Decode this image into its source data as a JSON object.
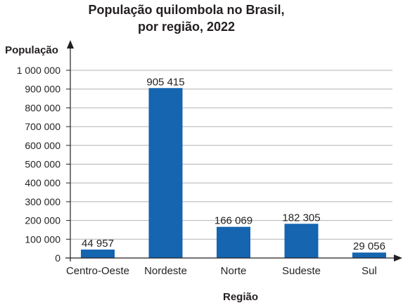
{
  "chart_data": {
    "type": "bar",
    "title_line1": "População quilombola no Brasil,",
    "title_line2": "por região, 2022",
    "ylabel": "População",
    "xlabel": "Região",
    "categories": [
      "Centro-Oeste",
      "Nordeste",
      "Norte",
      "Sudeste",
      "Sul"
    ],
    "values": [
      44957,
      905415,
      166069,
      182305,
      29056
    ],
    "value_labels": [
      "44 957",
      "905 415",
      "166 069",
      "182 305",
      "29 056"
    ],
    "ylim": [
      0,
      1000000
    ],
    "yticks": [
      0,
      100000,
      200000,
      300000,
      400000,
      500000,
      600000,
      700000,
      800000,
      900000,
      1000000
    ],
    "ytick_labels": [
      "0",
      "100 000",
      "200 000",
      "300 000",
      "400 000",
      "500 000",
      "600 000",
      "700 000",
      "800 000",
      "900 000",
      "1 000 000"
    ],
    "grid": true,
    "bar_color": "#1565b0"
  }
}
